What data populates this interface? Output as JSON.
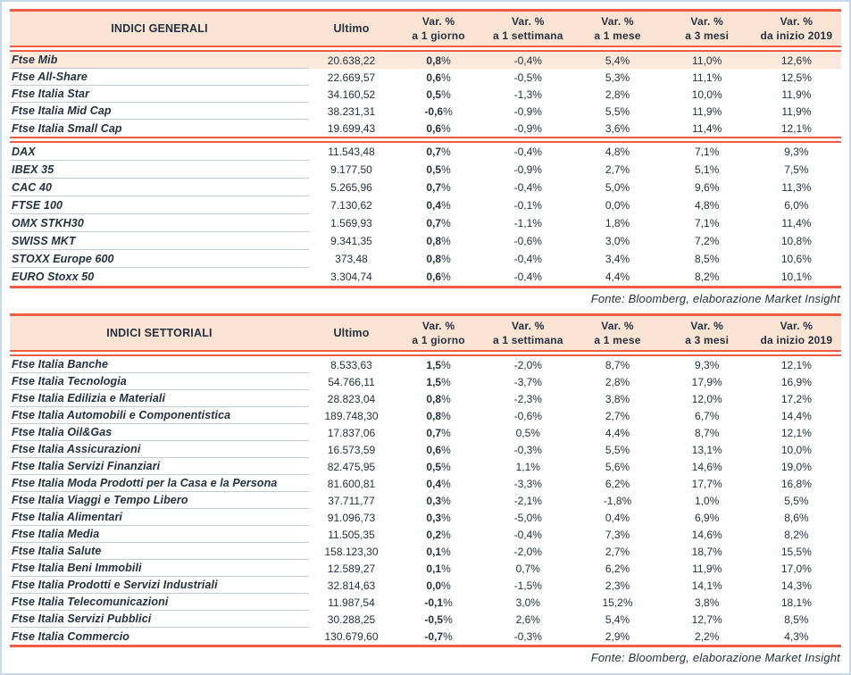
{
  "colors": {
    "accent_red": "#F05C44",
    "header_peach": "#FBE4D3",
    "highlight_peach": "#FBE9DB",
    "text_dark": "#24313F",
    "separator_gray": "#C4CBD3",
    "frame_blue": "#C9D8EA"
  },
  "tables": [
    {
      "title": "INDICI GENERALI",
      "ultimo_label": "Ultimo",
      "var_columns": [
        {
          "line1": "Var. %",
          "line2": "a 1 giorno"
        },
        {
          "line1": "Var. %",
          "line2": "a 1 settimana"
        },
        {
          "line1": "Var. %",
          "line2": "a 1 mese"
        },
        {
          "line1": "Var. %",
          "line2": "a 3 mesi"
        },
        {
          "line1": "Var. %",
          "line2": "da inizio 2019"
        }
      ],
      "source": "Fonte: Bloomberg, elaborazione Market Insight",
      "groups": [
        {
          "rows": [
            {
              "name": "Ftse Mib",
              "ultimo": "20.638,22",
              "values": [
                "0,8%",
                "-0,4%",
                "5,4%",
                "11,0%",
                "12,6%"
              ],
              "highlight": true
            },
            {
              "name": "Ftse All-Share",
              "ultimo": "22.669,57",
              "values": [
                "0,6%",
                "-0,5%",
                "5,3%",
                "11,1%",
                "12,5%"
              ]
            },
            {
              "name": "Ftse Italia Star",
              "ultimo": "34.160,52",
              "values": [
                "0,5%",
                "-1,3%",
                "2,8%",
                "10,0%",
                "11,9%"
              ]
            },
            {
              "name": "Ftse Italia Mid Cap",
              "ultimo": "38.231,31",
              "values": [
                "-0,6%",
                "-0,9%",
                "5,5%",
                "11,9%",
                "11,9%"
              ]
            },
            {
              "name": "Ftse Italia Small Cap",
              "ultimo": "19.699,43",
              "values": [
                "0,6%",
                "-0,9%",
                "3,6%",
                "11,4%",
                "12,1%"
              ]
            }
          ]
        },
        {
          "rows": [
            {
              "name": "DAX",
              "ultimo": "11.543,48",
              "values": [
                "0,7%",
                "-0,4%",
                "4,8%",
                "7,1%",
                "9,3%"
              ]
            },
            {
              "name": "IBEX 35",
              "ultimo": "9.177,50",
              "values": [
                "0,5%",
                "-0,9%",
                "2,7%",
                "5,1%",
                "7,5%"
              ]
            },
            {
              "name": "CAC 40",
              "ultimo": "5.265,96",
              "values": [
                "0,7%",
                "-0,4%",
                "5,0%",
                "9,6%",
                "11,3%"
              ]
            },
            {
              "name": "FTSE 100",
              "ultimo": "7.130,62",
              "values": [
                "0,4%",
                "-0,1%",
                "0,0%",
                "4,8%",
                "6,0%"
              ]
            },
            {
              "name": "OMX STKH30",
              "ultimo": "1.569,93",
              "values": [
                "0,7%",
                "-1,1%",
                "1,8%",
                "7,1%",
                "11,4%"
              ]
            },
            {
              "name": "SWISS MKT",
              "ultimo": "9.341,35",
              "values": [
                "0,8%",
                "-0,6%",
                "3,0%",
                "7,2%",
                "10,8%"
              ]
            },
            {
              "name": "STOXX Europe 600",
              "ultimo": "373,48",
              "values": [
                "0,8%",
                "-0,4%",
                "3,4%",
                "8,5%",
                "10,6%"
              ]
            },
            {
              "name": "EURO Stoxx 50",
              "ultimo": "3.304,74",
              "values": [
                "0,6%",
                "-0,4%",
                "4,4%",
                "8,2%",
                "10,1%"
              ]
            }
          ]
        }
      ]
    },
    {
      "title": "INDICI SETTORIALI",
      "ultimo_label": "Ultimo",
      "var_columns": [
        {
          "line1": "Var. %",
          "line2": "a 1 giorno"
        },
        {
          "line1": "Var. %",
          "line2": "a 1 settimana"
        },
        {
          "line1": "Var. %",
          "line2": "a 1 mese"
        },
        {
          "line1": "Var. %",
          "line2": "a 3 mesi"
        },
        {
          "line1": "Var. %",
          "line2": "da inizio 2019"
        }
      ],
      "source": "Fonte: Bloomberg, elaborazione Market Insight",
      "groups": [
        {
          "rows": [
            {
              "name": "Ftse Italia Banche",
              "ultimo": "8.533,63",
              "values": [
                "1,5%",
                "-2,0%",
                "8,7%",
                "9,3%",
                "12,1%"
              ]
            },
            {
              "name": "Ftse Italia Tecnologia",
              "ultimo": "54.766,11",
              "values": [
                "1,5%",
                "-3,7%",
                "2,8%",
                "17,9%",
                "16,9%"
              ]
            },
            {
              "name": "Ftse Italia Edilizia e Materiali",
              "ultimo": "28.823,04",
              "values": [
                "0,8%",
                "-2,3%",
                "3,8%",
                "12,0%",
                "17,2%"
              ]
            },
            {
              "name": "Ftse Italia Automobili e Componentistica",
              "ultimo": "189.748,30",
              "values": [
                "0,8%",
                "-0,6%",
                "2,7%",
                "6,7%",
                "14,4%"
              ]
            },
            {
              "name": "Ftse Italia Oil&Gas",
              "ultimo": "17.837,06",
              "values": [
                "0,7%",
                "0,5%",
                "4,4%",
                "8,7%",
                "12,1%"
              ]
            },
            {
              "name": "Ftse Italia Assicurazioni",
              "ultimo": "16.573,59",
              "values": [
                "0,6%",
                "-0,3%",
                "5,5%",
                "13,1%",
                "10,0%"
              ]
            },
            {
              "name": "Ftse Italia Servizi Finanziari",
              "ultimo": "82.475,95",
              "values": [
                "0,5%",
                "1,1%",
                "5,6%",
                "14,6%",
                "19,0%"
              ]
            },
            {
              "name": "Ftse Italia Moda Prodotti per la Casa e la Persona",
              "ultimo": "81.600,81",
              "values": [
                "0,4%",
                "-3,3%",
                "6,2%",
                "17,7%",
                "16,8%"
              ]
            },
            {
              "name": "Ftse Italia Viaggi e Tempo Libero",
              "ultimo": "37.711,77",
              "values": [
                "0,3%",
                "-2,1%",
                "-1,8%",
                "1,0%",
                "5,5%"
              ]
            },
            {
              "name": "Ftse Italia Alimentari",
              "ultimo": "91.096,73",
              "values": [
                "0,3%",
                "-5,0%",
                "0,4%",
                "6,9%",
                "8,6%"
              ]
            },
            {
              "name": "Ftse Italia Media",
              "ultimo": "11.505,35",
              "values": [
                "0,2%",
                "-0,4%",
                "7,3%",
                "14,6%",
                "8,2%"
              ]
            },
            {
              "name": "Ftse Italia Salute",
              "ultimo": "158.123,30",
              "values": [
                "0,1%",
                "-2,0%",
                "2,7%",
                "18,7%",
                "15,5%"
              ]
            },
            {
              "name": "Ftse Italia Beni Immobili",
              "ultimo": "12.589,27",
              "values": [
                "0,1%",
                "0,7%",
                "6,2%",
                "11,9%",
                "17,0%"
              ]
            },
            {
              "name": "Ftse Italia Prodotti e Servizi Industriali",
              "ultimo": "32.814,63",
              "values": [
                "0,0%",
                "-1,5%",
                "2,3%",
                "14,1%",
                "14,3%"
              ]
            },
            {
              "name": "Ftse Italia Telecomunicazioni",
              "ultimo": "11.987,54",
              "values": [
                "-0,1%",
                "3,0%",
                "15,2%",
                "3,8%",
                "18,1%"
              ]
            },
            {
              "name": "Ftse Italia Servizi Pubblici",
              "ultimo": "30.288,25",
              "values": [
                "-0,5%",
                "2,6%",
                "5,4%",
                "12,7%",
                "8,5%"
              ]
            },
            {
              "name": "Ftse Italia Commercio",
              "ultimo": "130.679,60",
              "values": [
                "-0,7%",
                "-0,3%",
                "2,9%",
                "2,2%",
                "4,3%"
              ]
            }
          ]
        }
      ]
    }
  ]
}
